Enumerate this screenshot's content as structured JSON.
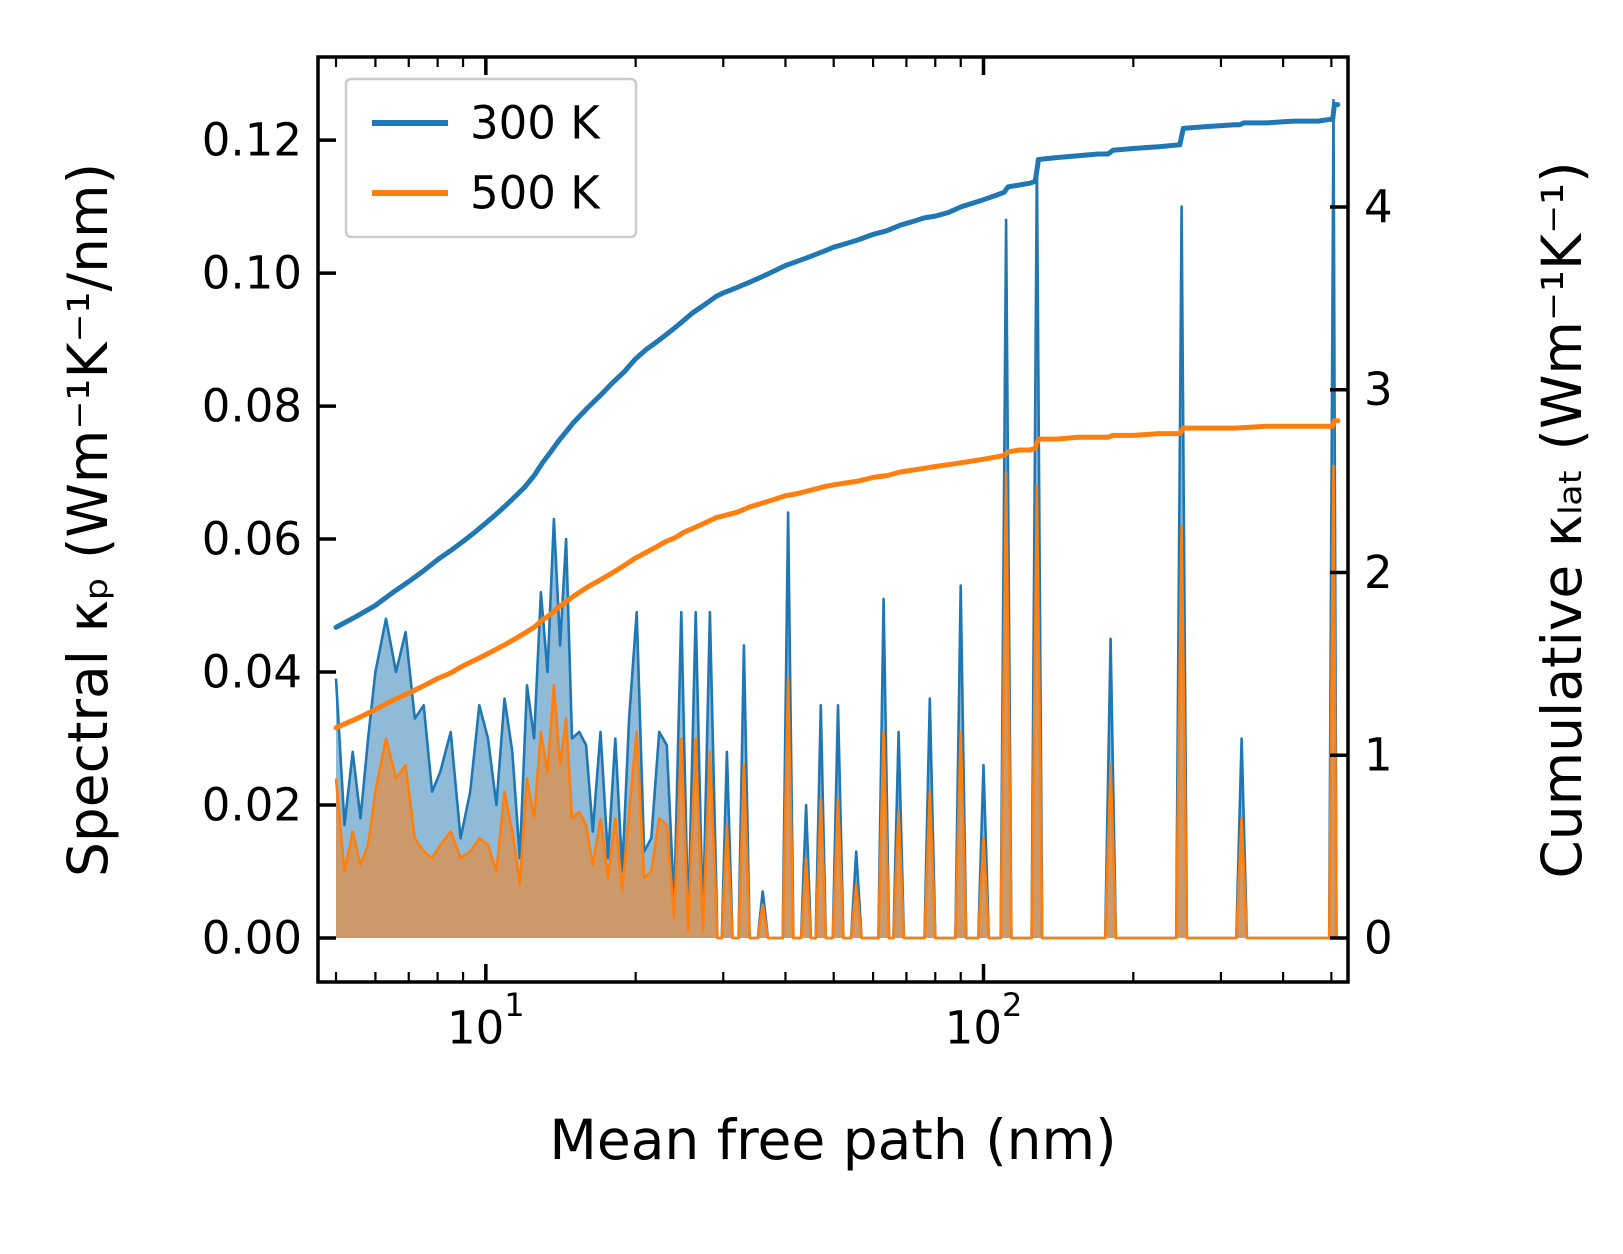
{
  "chart_data": {
    "type": "area",
    "title": "",
    "xlabel": "Mean free path (nm)",
    "ylabel_left": "Spectral κₚ (Wm⁻¹K⁻¹/nm)",
    "ylabel_right": "Cumulative κₗₐₜ (Wm⁻¹K⁻¹)",
    "x_scale": "log",
    "x_range": [
      4.6,
      540
    ],
    "y_left_range": [
      -0.00662,
      0.1325
    ],
    "y_right_range": [
      -0.2408,
      4.8206
    ],
    "grid": "off",
    "legend_position": "upper-left",
    "x_major_ticks": [
      {
        "value": 10,
        "base": "10",
        "exp": "1",
        "label": "10¹"
      },
      {
        "value": 100,
        "base": "10",
        "exp": "2",
        "label": "10²"
      }
    ],
    "x_minor_ticks": [
      5,
      6,
      7,
      8,
      9,
      20,
      30,
      40,
      50,
      60,
      70,
      80,
      90,
      200,
      300,
      400,
      500
    ],
    "y_left_ticks": [
      {
        "value": 0.0,
        "label": "0.00"
      },
      {
        "value": 0.02,
        "label": "0.02"
      },
      {
        "value": 0.04,
        "label": "0.04"
      },
      {
        "value": 0.06,
        "label": "0.06"
      },
      {
        "value": 0.08,
        "label": "0.08"
      },
      {
        "value": 0.1,
        "label": "0.10"
      },
      {
        "value": 0.12,
        "label": "0.12"
      }
    ],
    "y_right_ticks": [
      {
        "value": 0,
        "label": "0"
      },
      {
        "value": 1,
        "label": "1"
      },
      {
        "value": 2,
        "label": "2"
      },
      {
        "value": 3,
        "label": "3"
      },
      {
        "value": 4,
        "label": "4"
      }
    ],
    "colors": {
      "series_300": "#1f77b4",
      "series_500": "#ff7f0e"
    },
    "fill_opacity": 0.5,
    "legend": {
      "entries": [
        {
          "label": "300 K",
          "color": "#1f77b4"
        },
        {
          "label": "500 K",
          "color": "#ff7f0e"
        }
      ]
    },
    "spectral_points": [
      [
        5.0,
        0.039,
        0.024
      ],
      [
        5.2,
        0.017,
        0.01
      ],
      [
        5.4,
        0.028,
        0.016
      ],
      [
        5.6,
        0.018,
        0.011
      ],
      [
        5.8,
        0.03,
        0.014
      ],
      [
        6.0,
        0.04,
        0.022
      ],
      [
        6.3,
        0.048,
        0.03
      ],
      [
        6.6,
        0.04,
        0.024
      ],
      [
        6.9,
        0.046,
        0.026
      ],
      [
        7.2,
        0.033,
        0.015
      ],
      [
        7.5,
        0.035,
        0.013
      ],
      [
        7.8,
        0.022,
        0.012
      ],
      [
        8.1,
        0.025,
        0.014
      ],
      [
        8.5,
        0.031,
        0.016
      ],
      [
        8.9,
        0.015,
        0.012
      ],
      [
        9.3,
        0.022,
        0.013
      ],
      [
        9.7,
        0.035,
        0.015
      ],
      [
        10.1,
        0.03,
        0.014
      ],
      [
        10.5,
        0.02,
        0.01
      ],
      [
        10.9,
        0.036,
        0.022
      ],
      [
        11.3,
        0.028,
        0.016
      ],
      [
        11.7,
        0.012,
        0.008
      ],
      [
        12.1,
        0.038,
        0.024
      ],
      [
        12.5,
        0.03,
        0.018
      ],
      [
        12.9,
        0.052,
        0.031
      ],
      [
        13.3,
        0.04,
        0.025
      ],
      [
        13.7,
        0.063,
        0.038
      ],
      [
        14.1,
        0.044,
        0.026
      ],
      [
        14.5,
        0.06,
        0.033
      ],
      [
        14.9,
        0.03,
        0.018
      ],
      [
        15.4,
        0.031,
        0.019
      ],
      [
        15.9,
        0.029,
        0.017
      ],
      [
        16.4,
        0.016,
        0.011
      ],
      [
        17.0,
        0.031,
        0.018
      ],
      [
        17.6,
        0.012,
        0.009
      ],
      [
        18.2,
        0.03,
        0.018
      ],
      [
        18.8,
        0.01,
        0.007
      ],
      [
        19.4,
        0.033,
        0.019
      ],
      [
        20.1,
        0.049,
        0.031
      ],
      [
        20.8,
        0.013,
        0.009
      ],
      [
        21.5,
        0.015,
        0.01
      ],
      [
        22.3,
        0.031,
        0.018
      ],
      [
        23.1,
        0.029,
        0.017
      ],
      [
        23.9,
        0.005,
        0.003
      ],
      [
        24.7,
        0.049,
        0.03
      ],
      [
        25.5,
        0.002,
        0.001
      ],
      [
        26.4,
        0.049,
        0.03
      ],
      [
        27.3,
        0.002,
        0.001
      ],
      [
        28.2,
        0.049,
        0.028
      ],
      [
        29.2,
        0,
        0
      ],
      [
        29.8,
        0,
        0
      ],
      [
        30.5,
        0.028,
        0.017
      ],
      [
        31.3,
        0,
        0
      ],
      [
        32.2,
        0,
        0
      ],
      [
        33.0,
        0.044,
        0.026
      ],
      [
        33.9,
        0,
        0
      ],
      [
        35.2,
        0,
        0
      ],
      [
        36.0,
        0.007,
        0.005
      ],
      [
        36.9,
        0,
        0
      ],
      [
        39.5,
        0,
        0
      ],
      [
        40.5,
        0.064,
        0.039
      ],
      [
        41.5,
        0,
        0
      ],
      [
        43.0,
        0,
        0
      ],
      [
        44.0,
        0.02,
        0.012
      ],
      [
        45.0,
        0,
        0
      ],
      [
        46.0,
        0,
        0
      ],
      [
        47.1,
        0.035,
        0.021
      ],
      [
        48.2,
        0,
        0
      ],
      [
        49.8,
        0,
        0
      ],
      [
        51.0,
        0.035,
        0.021
      ],
      [
        52.3,
        0,
        0
      ],
      [
        54.2,
        0,
        0
      ],
      [
        55.5,
        0.013,
        0.008
      ],
      [
        56.9,
        0,
        0
      ],
      [
        61.5,
        0,
        0
      ],
      [
        63.0,
        0.051,
        0.031
      ],
      [
        64.6,
        0,
        0
      ],
      [
        65.9,
        0,
        0
      ],
      [
        67.5,
        0.031,
        0.019
      ],
      [
        69.2,
        0,
        0
      ],
      [
        76.1,
        0,
        0
      ],
      [
        78.0,
        0.036,
        0.022
      ],
      [
        80.0,
        0,
        0
      ],
      [
        87.8,
        0,
        0
      ],
      [
        90.0,
        0.053,
        0.031
      ],
      [
        92.3,
        0,
        0
      ],
      [
        97.6,
        0,
        0
      ],
      [
        100.0,
        0.026,
        0.015
      ],
      [
        102.5,
        0,
        0
      ],
      [
        108.3,
        0,
        0
      ],
      [
        111.0,
        0.108,
        0.07
      ],
      [
        113.8,
        0,
        0
      ],
      [
        124.9,
        0,
        0
      ],
      [
        128.0,
        0.117,
        0.068
      ],
      [
        131.2,
        0,
        0
      ],
      [
        175.6,
        0,
        0
      ],
      [
        180.0,
        0.045,
        0.026
      ],
      [
        184.5,
        0,
        0
      ],
      [
        243.9,
        0,
        0
      ],
      [
        250.0,
        0.11,
        0.062
      ],
      [
        256.3,
        0,
        0
      ],
      [
        322.0,
        0,
        0
      ],
      [
        330.0,
        0.03,
        0.018
      ],
      [
        338.3,
        0,
        0
      ],
      [
        495.0,
        0,
        0
      ],
      [
        505.0,
        0.126,
        0.071
      ],
      [
        512.0,
        0,
        0
      ]
    ],
    "cumulative_300": [
      [
        5,
        1.7
      ],
      [
        5.5,
        1.76
      ],
      [
        6,
        1.82
      ],
      [
        6.5,
        1.89
      ],
      [
        7,
        1.95
      ],
      [
        7.5,
        2.01
      ],
      [
        8,
        2.07
      ],
      [
        8.5,
        2.12
      ],
      [
        9,
        2.17
      ],
      [
        9.5,
        2.22
      ],
      [
        10,
        2.27
      ],
      [
        10.5,
        2.32
      ],
      [
        11,
        2.37
      ],
      [
        11.5,
        2.42
      ],
      [
        12,
        2.47
      ],
      [
        12.5,
        2.53
      ],
      [
        13,
        2.6
      ],
      [
        13.5,
        2.66
      ],
      [
        14,
        2.72
      ],
      [
        14.5,
        2.77
      ],
      [
        15,
        2.82
      ],
      [
        16,
        2.9
      ],
      [
        17,
        2.97
      ],
      [
        18,
        3.04
      ],
      [
        19,
        3.1
      ],
      [
        20,
        3.17
      ],
      [
        21,
        3.22
      ],
      [
        22,
        3.26
      ],
      [
        23,
        3.3
      ],
      [
        24,
        3.34
      ],
      [
        25,
        3.38
      ],
      [
        26,
        3.42
      ],
      [
        27,
        3.45
      ],
      [
        28,
        3.48
      ],
      [
        29,
        3.51
      ],
      [
        30,
        3.53
      ],
      [
        32,
        3.56
      ],
      [
        34,
        3.59
      ],
      [
        36,
        3.62
      ],
      [
        38,
        3.65
      ],
      [
        40,
        3.68
      ],
      [
        42,
        3.7
      ],
      [
        45,
        3.73
      ],
      [
        48,
        3.76
      ],
      [
        50,
        3.78
      ],
      [
        53,
        3.8
      ],
      [
        56,
        3.82
      ],
      [
        60,
        3.85
      ],
      [
        64,
        3.87
      ],
      [
        68,
        3.9
      ],
      [
        72,
        3.92
      ],
      [
        76,
        3.94
      ],
      [
        80,
        3.95
      ],
      [
        85,
        3.97
      ],
      [
        90,
        4.0
      ],
      [
        95,
        4.02
      ],
      [
        100,
        4.04
      ],
      [
        105,
        4.06
      ],
      [
        110,
        4.08
      ],
      [
        112,
        4.11
      ],
      [
        118,
        4.12
      ],
      [
        124,
        4.13
      ],
      [
        127,
        4.14
      ],
      [
        129,
        4.26
      ],
      [
        140,
        4.27
      ],
      [
        155,
        4.28
      ],
      [
        170,
        4.29
      ],
      [
        178,
        4.29
      ],
      [
        182,
        4.31
      ],
      [
        200,
        4.32
      ],
      [
        225,
        4.33
      ],
      [
        248,
        4.34
      ],
      [
        252,
        4.43
      ],
      [
        280,
        4.44
      ],
      [
        320,
        4.45
      ],
      [
        328,
        4.45
      ],
      [
        333,
        4.46
      ],
      [
        370,
        4.46
      ],
      [
        420,
        4.47
      ],
      [
        470,
        4.47
      ],
      [
        500,
        4.48
      ],
      [
        503,
        4.48
      ],
      [
        507,
        4.56
      ],
      [
        515,
        4.56
      ]
    ],
    "cumulative_500": [
      [
        5,
        1.15
      ],
      [
        5.5,
        1.2
      ],
      [
        6,
        1.25
      ],
      [
        6.5,
        1.3
      ],
      [
        7,
        1.34
      ],
      [
        7.5,
        1.38
      ],
      [
        8,
        1.42
      ],
      [
        8.5,
        1.45
      ],
      [
        9,
        1.49
      ],
      [
        9.5,
        1.52
      ],
      [
        10,
        1.55
      ],
      [
        10.5,
        1.58
      ],
      [
        11,
        1.61
      ],
      [
        11.5,
        1.64
      ],
      [
        12,
        1.67
      ],
      [
        12.5,
        1.7
      ],
      [
        13,
        1.74
      ],
      [
        13.5,
        1.77
      ],
      [
        14,
        1.81
      ],
      [
        14.5,
        1.84
      ],
      [
        15,
        1.87
      ],
      [
        16,
        1.92
      ],
      [
        17,
        1.96
      ],
      [
        18,
        2.0
      ],
      [
        19,
        2.04
      ],
      [
        20,
        2.08
      ],
      [
        21,
        2.11
      ],
      [
        22,
        2.14
      ],
      [
        23,
        2.17
      ],
      [
        24,
        2.19
      ],
      [
        25,
        2.22
      ],
      [
        26,
        2.24
      ],
      [
        27,
        2.26
      ],
      [
        28,
        2.28
      ],
      [
        29,
        2.3
      ],
      [
        30,
        2.31
      ],
      [
        32,
        2.33
      ],
      [
        34,
        2.36
      ],
      [
        36,
        2.38
      ],
      [
        38,
        2.4
      ],
      [
        40,
        2.42
      ],
      [
        42,
        2.43
      ],
      [
        45,
        2.45
      ],
      [
        48,
        2.47
      ],
      [
        50,
        2.48
      ],
      [
        53,
        2.49
      ],
      [
        56,
        2.5
      ],
      [
        60,
        2.52
      ],
      [
        64,
        2.53
      ],
      [
        68,
        2.55
      ],
      [
        72,
        2.56
      ],
      [
        76,
        2.57
      ],
      [
        80,
        2.58
      ],
      [
        85,
        2.59
      ],
      [
        90,
        2.6
      ],
      [
        95,
        2.61
      ],
      [
        100,
        2.62
      ],
      [
        105,
        2.63
      ],
      [
        110,
        2.64
      ],
      [
        112,
        2.66
      ],
      [
        118,
        2.67
      ],
      [
        124,
        2.67
      ],
      [
        127,
        2.68
      ],
      [
        129,
        2.73
      ],
      [
        140,
        2.73
      ],
      [
        155,
        2.74
      ],
      [
        170,
        2.74
      ],
      [
        178,
        2.74
      ],
      [
        182,
        2.75
      ],
      [
        200,
        2.75
      ],
      [
        225,
        2.76
      ],
      [
        248,
        2.76
      ],
      [
        252,
        2.79
      ],
      [
        280,
        2.79
      ],
      [
        320,
        2.79
      ],
      [
        370,
        2.8
      ],
      [
        420,
        2.8
      ],
      [
        470,
        2.8
      ],
      [
        500,
        2.8
      ],
      [
        503,
        2.8
      ],
      [
        507,
        2.83
      ],
      [
        515,
        2.83
      ]
    ]
  }
}
